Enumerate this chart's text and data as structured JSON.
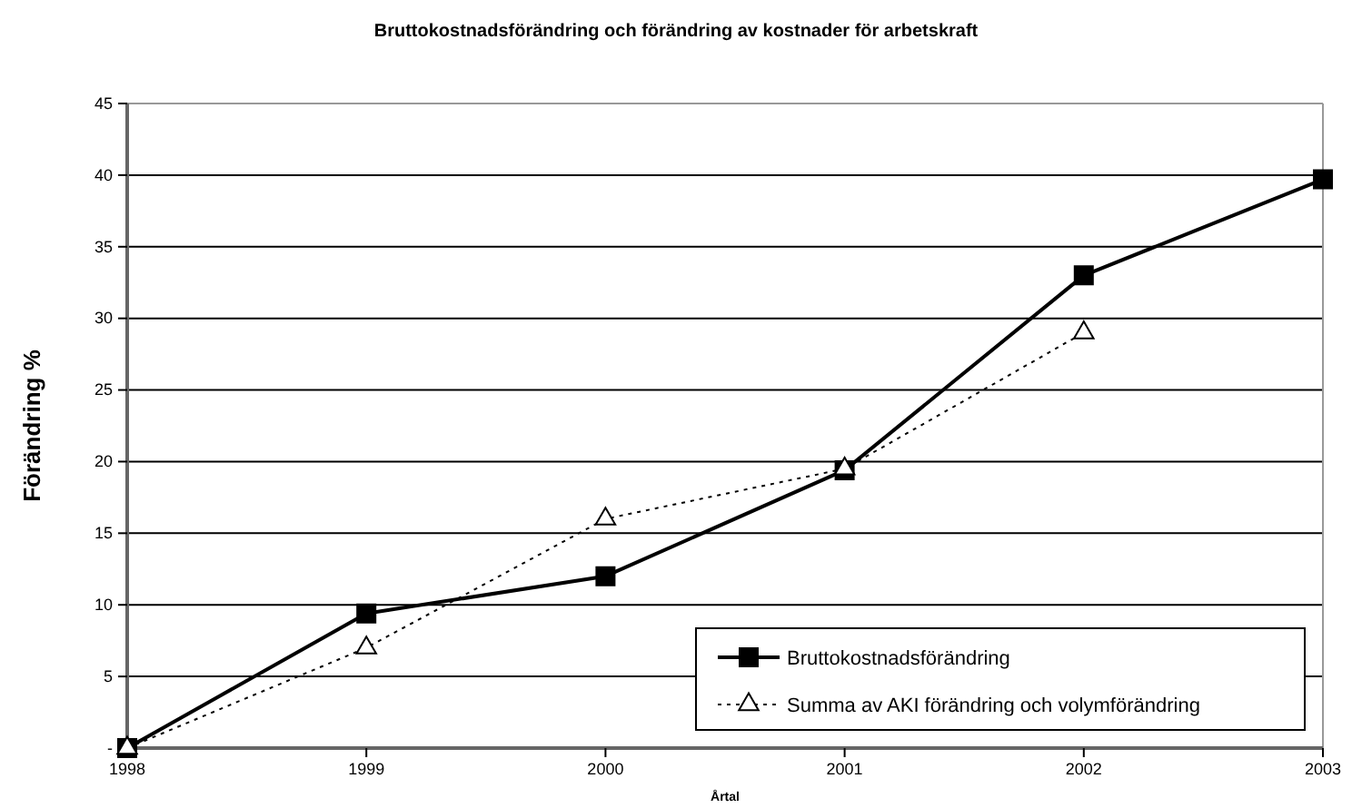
{
  "chart_data": {
    "type": "line",
    "title": "Bruttokostnadsförändring och förändring av kostnader för arbetskraft",
    "xlabel": "Årtal",
    "ylabel": "Förändring %",
    "x": [
      1998,
      1999,
      2000,
      2001,
      2002,
      2003
    ],
    "xlim": [
      1998,
      2003
    ],
    "xticks": [
      1998,
      1999,
      2000,
      2001,
      2002,
      2003
    ],
    "ylim": [
      0,
      45
    ],
    "yticks": [
      {
        "value": 0,
        "label": "-"
      },
      5,
      10,
      15,
      20,
      25,
      30,
      35,
      40,
      45
    ],
    "grid": "y",
    "legend": "bottom right",
    "series": [
      {
        "name": "Bruttokostnadsförändring",
        "color": "#000000",
        "marker": "square",
        "line_style": "solid",
        "values": [
          0,
          9.4,
          12,
          19.4,
          33,
          39.7
        ]
      },
      {
        "name": "Summa av AKI förändring och volymförändring",
        "color": "#000000",
        "marker": "triangle",
        "line_style": "dotted",
        "values": [
          0,
          7,
          16,
          19.5,
          29,
          null
        ]
      }
    ]
  }
}
